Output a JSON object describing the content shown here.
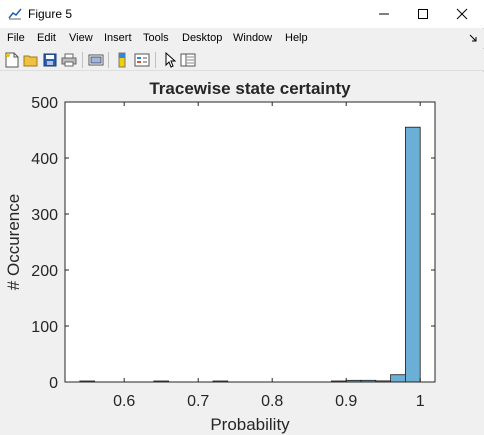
{
  "window": {
    "title": "Figure 5",
    "minimize_symbol": "—",
    "maximize_symbol": "☐",
    "close_symbol": "✕"
  },
  "menubar": {
    "items": [
      "File",
      "Edit",
      "View",
      "Insert",
      "Tools",
      "Desktop",
      "Window",
      "Help"
    ]
  },
  "toolbar": {
    "buttons": [
      "new-figure-icon",
      "open-file-icon",
      "save-icon",
      "print-icon",
      "link-plot-icon",
      "insert-colorbar-icon",
      "insert-legend-icon",
      "edit-plot-icon",
      "property-inspector-icon"
    ]
  },
  "colors": {
    "bar_fill": "#6baed6",
    "bar_edge": "#1a1a1a",
    "axes_bg": "#ffffff"
  },
  "chart_data": {
    "type": "bar",
    "title": "Tracewise state certainty",
    "xlabel": "Probability",
    "ylabel": "# Occurence",
    "xlim": [
      0.52,
      1.02
    ],
    "ylim": [
      0,
      500
    ],
    "xticks": [
      0.6,
      0.7,
      0.8,
      0.9,
      1
    ],
    "xtick_labels": [
      "0.6",
      "0.7",
      "0.8",
      "0.9",
      "1"
    ],
    "yticks": [
      0,
      100,
      200,
      300,
      400,
      500
    ],
    "ytick_labels": [
      "0",
      "100",
      "200",
      "300",
      "400",
      "500"
    ],
    "bin_width": 0.02,
    "bins": [
      {
        "x0": 0.54,
        "x1": 0.56,
        "value": 1
      },
      {
        "x0": 0.64,
        "x1": 0.66,
        "value": 1
      },
      {
        "x0": 0.72,
        "x1": 0.74,
        "value": 1
      },
      {
        "x0": 0.88,
        "x1": 0.9,
        "value": 1
      },
      {
        "x0": 0.9,
        "x1": 0.92,
        "value": 3
      },
      {
        "x0": 0.92,
        "x1": 0.94,
        "value": 3
      },
      {
        "x0": 0.94,
        "x1": 0.96,
        "value": 2
      },
      {
        "x0": 0.96,
        "x1": 0.98,
        "value": 13
      },
      {
        "x0": 0.98,
        "x1": 1.0,
        "value": 455
      }
    ],
    "grid": false
  }
}
